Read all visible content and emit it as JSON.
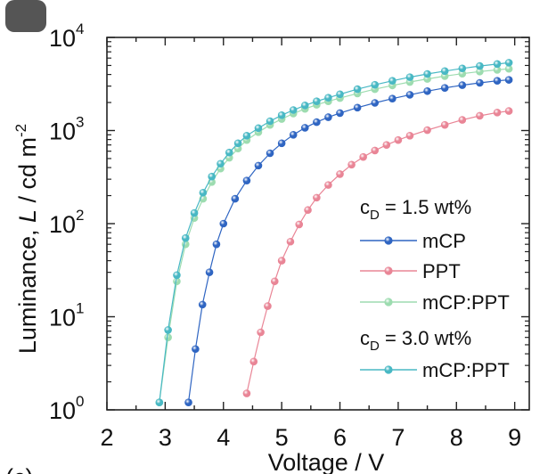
{
  "chart_data": {
    "type": "scatter",
    "xlabel": "Voltage / V",
    "ylabel": {
      "prefix": "Luminance, ",
      "italic": "L",
      "suffix": " / cd m",
      "exp": "-2"
    },
    "xlim": [
      2,
      9.25
    ],
    "ylim": [
      1,
      10000
    ],
    "yscale": "log",
    "x_ticks": [
      "2",
      "3",
      "4",
      "5",
      "6",
      "7",
      "8",
      "9"
    ],
    "y_ticks": [
      {
        "base": "10",
        "exp": "0"
      },
      {
        "base": "10",
        "exp": "1"
      },
      {
        "base": "10",
        "exp": "2"
      },
      {
        "base": "10",
        "exp": "3"
      },
      {
        "base": "10",
        "exp": "4"
      }
    ],
    "grid": false,
    "legend_position": "center-right",
    "legend_groups": [
      {
        "prefix": "c",
        "sub": "D",
        "suffix": " = 1.5 wt%"
      },
      {
        "prefix": "c",
        "sub": "D",
        "suffix": " = 3.0 wt%"
      }
    ],
    "series": [
      {
        "name": "mCP",
        "group": 0,
        "color": "#2f65c2",
        "x": [
          3.4,
          3.52,
          3.64,
          3.76,
          3.88,
          4.0,
          4.2,
          4.4,
          4.6,
          4.8,
          5.0,
          5.2,
          5.4,
          5.6,
          5.8,
          6.0,
          6.3,
          6.6,
          6.9,
          7.2,
          7.5,
          7.8,
          8.1,
          8.4,
          8.7,
          8.9
        ],
        "y": [
          1.2,
          4.5,
          13.5,
          30,
          60,
          100,
          185,
          290,
          420,
          570,
          730,
          900,
          1070,
          1230,
          1390,
          1540,
          1760,
          1980,
          2200,
          2420,
          2650,
          2870,
          3070,
          3250,
          3420,
          3500
        ]
      },
      {
        "name": "PPT",
        "group": 0,
        "color": "#e98596",
        "x": [
          4.4,
          4.52,
          4.64,
          4.76,
          4.88,
          5.0,
          5.15,
          5.3,
          5.45,
          5.6,
          5.8,
          6.0,
          6.2,
          6.4,
          6.6,
          6.8,
          7.0,
          7.2,
          7.5,
          7.8,
          8.1,
          8.4,
          8.7,
          8.9
        ],
        "y": [
          1.5,
          3.3,
          6.8,
          13,
          24,
          40,
          64,
          98,
          140,
          190,
          260,
          340,
          430,
          520,
          610,
          700,
          790,
          880,
          1010,
          1150,
          1300,
          1440,
          1560,
          1620
        ]
      },
      {
        "name": "mCP:PPT",
        "group": 0,
        "color": "#9ddcb0",
        "x": [
          2.9,
          3.05,
          3.2,
          3.35,
          3.5,
          3.65,
          3.8,
          3.95,
          4.1,
          4.25,
          4.4,
          4.6,
          4.8,
          5.0,
          5.2,
          5.4,
          5.6,
          5.8,
          6.0,
          6.3,
          6.6,
          6.9,
          7.2,
          7.5,
          7.8,
          8.1,
          8.4,
          8.7,
          8.9
        ],
        "y": [
          1.2,
          6,
          24,
          60,
          115,
          185,
          280,
          390,
          510,
          640,
          790,
          960,
          1150,
          1330,
          1520,
          1710,
          1890,
          2060,
          2230,
          2500,
          2780,
          3050,
          3320,
          3580,
          3840,
          4080,
          4300,
          4480,
          4600
        ]
      },
      {
        "name": "mCP:PPT",
        "group": 1,
        "color": "#48b8c4",
        "x": [
          2.9,
          3.05,
          3.2,
          3.35,
          3.5,
          3.65,
          3.8,
          3.95,
          4.1,
          4.25,
          4.4,
          4.6,
          4.8,
          5.0,
          5.2,
          5.4,
          5.6,
          5.8,
          6.0,
          6.3,
          6.6,
          6.9,
          7.2,
          7.5,
          7.8,
          8.1,
          8.4,
          8.7,
          8.9
        ],
        "y": [
          1.2,
          7.2,
          28,
          70,
          130,
          215,
          320,
          440,
          580,
          730,
          880,
          1060,
          1260,
          1460,
          1660,
          1860,
          2060,
          2250,
          2450,
          2780,
          3100,
          3420,
          3740,
          4050,
          4350,
          4650,
          4930,
          5180,
          5350
        ]
      }
    ]
  },
  "overlay": {
    "panel_label": "(c)"
  }
}
